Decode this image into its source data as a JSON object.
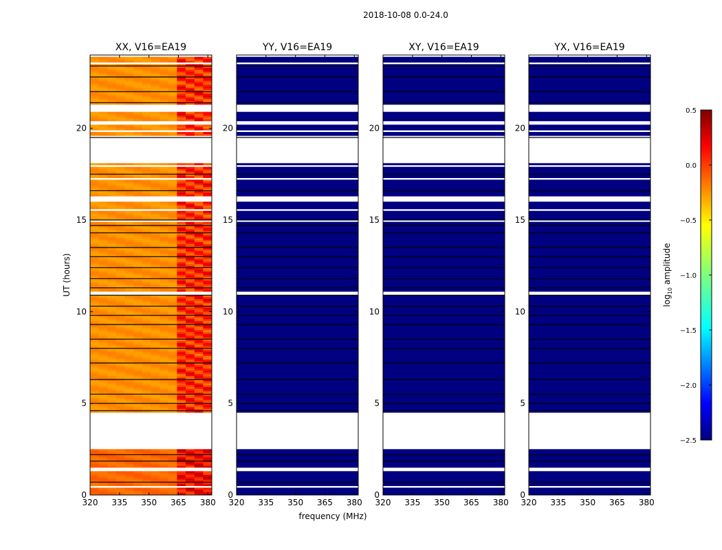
{
  "chart_data": {
    "type": "heatmap",
    "title": "2018-10-08 0.0-24.0",
    "xlabel": "frequency (MHz)",
    "ylabel": "UT (hours)",
    "xlim": [
      320,
      382
    ],
    "ylim": [
      0,
      24
    ],
    "xticks": [
      320,
      335,
      350,
      365,
      380
    ],
    "yticks": [
      0,
      5,
      10,
      15,
      20
    ],
    "panels": [
      {
        "title": "XX, V16=EA19",
        "pol": "XX",
        "base_value": -0.3
      },
      {
        "title": "YY, V16=EA19",
        "pol": "YY",
        "base_value": -2.5
      },
      {
        "title": "XY, V16=EA19",
        "pol": "XY",
        "base_value": -2.5
      },
      {
        "title": "YX, V16=EA19",
        "pol": "YX",
        "base_value": -2.5
      }
    ],
    "flagged_ranges_hours": [
      [
        0.38,
        0.5
      ],
      [
        1.3,
        1.5
      ],
      [
        2.55,
        4.45
      ],
      [
        19.45,
        19.6
      ],
      [
        17.2,
        17.3
      ],
      [
        17.95,
        18.0
      ],
      [
        18.15,
        19.45
      ],
      [
        19.85,
        19.95
      ],
      [
        20.25,
        20.4
      ],
      [
        20.9,
        21.3
      ],
      [
        15.5,
        15.65
      ],
      [
        16.05,
        16.25
      ],
      [
        14.9,
        14.98
      ],
      [
        10.95,
        11.05
      ],
      [
        23.5,
        23.65
      ],
      [
        23.9,
        24.0
      ]
    ],
    "black_lines_hours": [
      0.7,
      1.85,
      2.2,
      4.6,
      5.0,
      5.5,
      6.3,
      7.2,
      8.0,
      8.5,
      9.3,
      9.8,
      10.3,
      10.9,
      11.3,
      11.8,
      12.4,
      13.0,
      13.5,
      14.3,
      14.7,
      15.0,
      16.6,
      17.5,
      19.5,
      21.4,
      22.0,
      22.8,
      23.4
    ],
    "hot_band_mhz": [
      362,
      381
    ],
    "cbar": {
      "label": "log10 amplitude",
      "vmin": -2.5,
      "vmax": 0.5,
      "ticks": [
        -2.5,
        -2.0,
        -1.5,
        -1.0,
        -0.5,
        0.0,
        0.5
      ],
      "tick_labels": [
        "−2.5",
        "−2.0",
        "−1.5",
        "−1.0",
        "−0.5",
        "0.0",
        "0.5"
      ]
    }
  }
}
